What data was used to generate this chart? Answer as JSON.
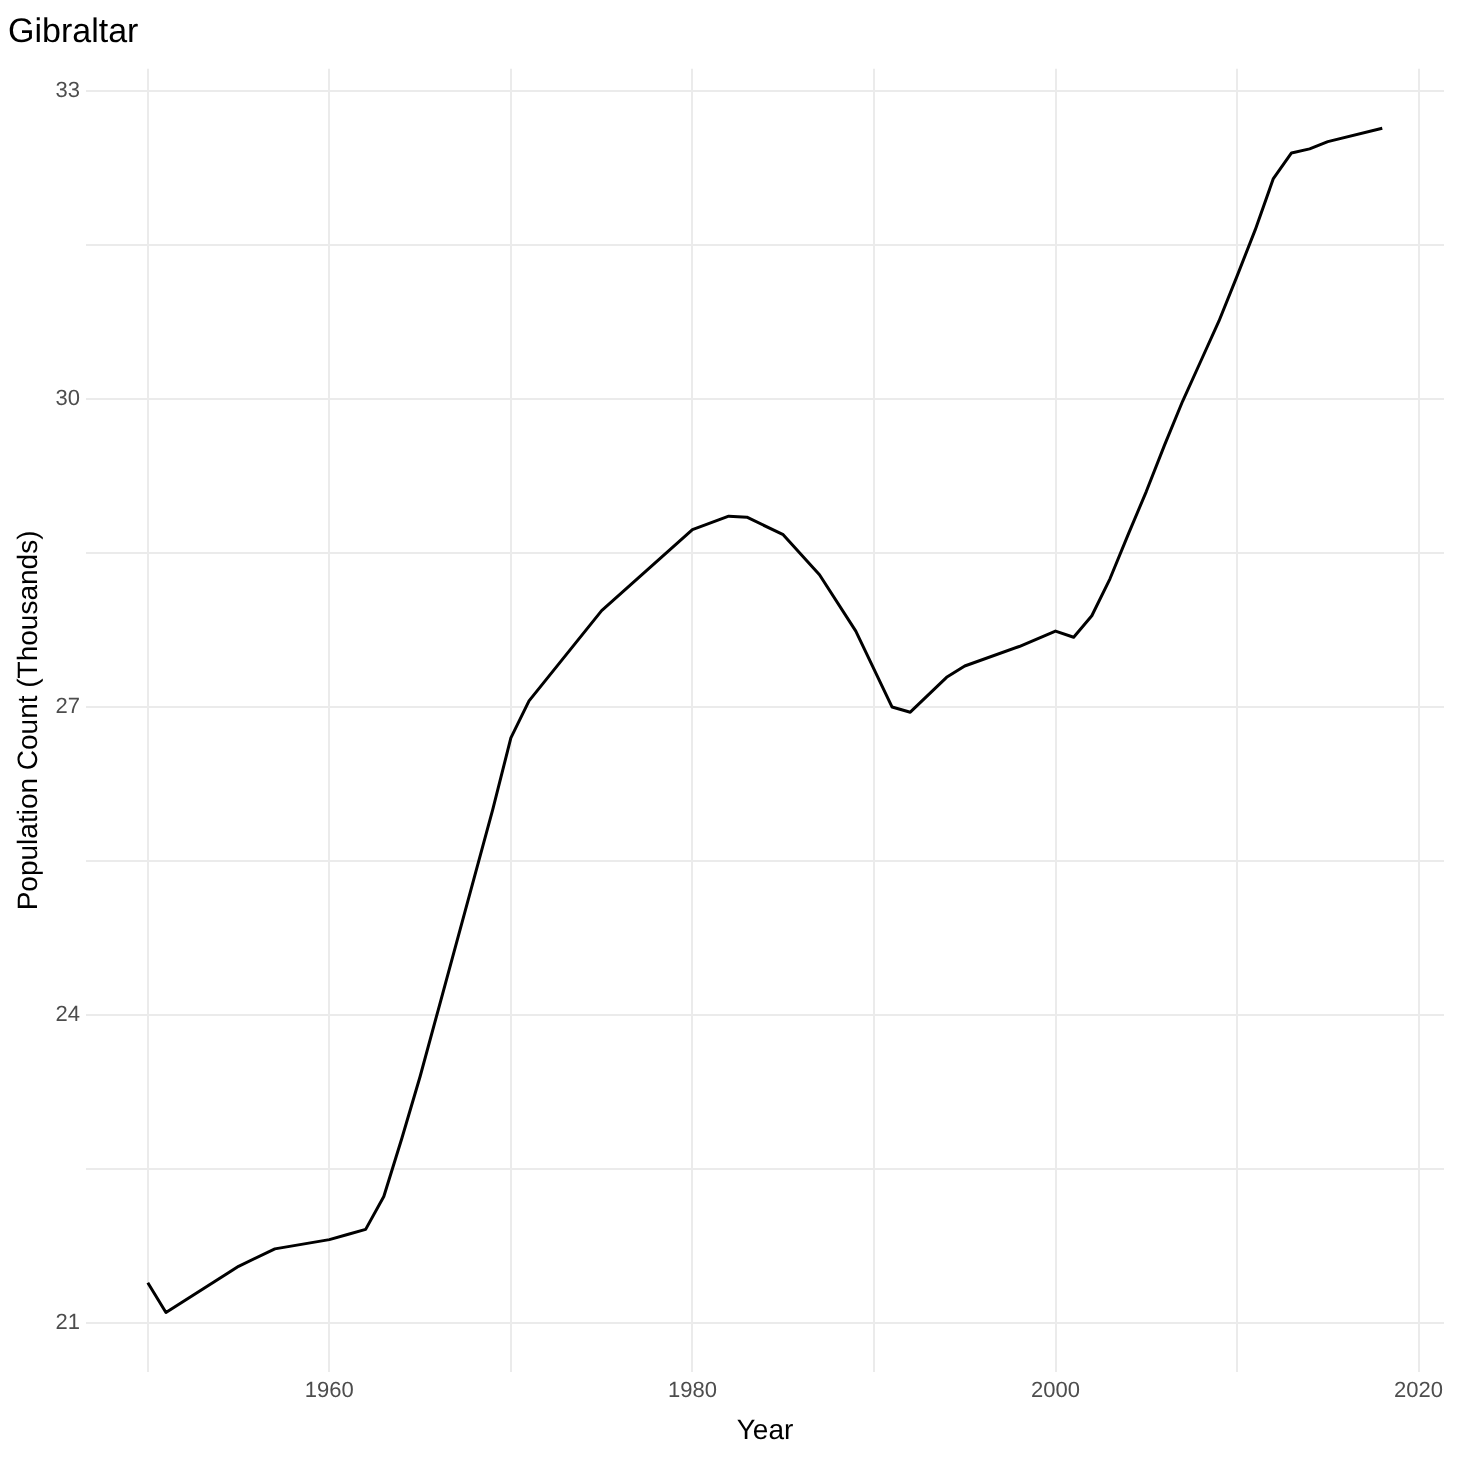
{
  "chart_data": {
    "type": "line",
    "title": "Gibraltar",
    "xlabel": "Year",
    "ylabel": "Population Count (Thousands)",
    "x": [
      1950,
      1951,
      1955,
      1957,
      1960,
      1961,
      1962,
      1963,
      1964,
      1965,
      1966,
      1967,
      1968,
      1969,
      1970,
      1971,
      1975,
      1980,
      1982,
      1983,
      1985,
      1987,
      1989,
      1991,
      1992,
      1994,
      1995,
      1998,
      2000,
      2001,
      2002,
      2003,
      2004,
      2005,
      2006,
      2007,
      2008,
      2009,
      2010,
      2011,
      2012,
      2013,
      2014,
      2015,
      2018
    ],
    "series": [
      {
        "color": "#000000",
        "values": [
          21.39,
          21.1,
          21.55,
          21.72,
          21.81,
          21.86,
          21.91,
          22.23,
          22.8,
          23.4,
          24.05,
          24.7,
          25.35,
          26.0,
          26.7,
          27.06,
          27.94,
          28.73,
          28.86,
          28.85,
          28.68,
          28.29,
          27.74,
          27.0,
          26.95,
          27.29,
          27.4,
          27.59,
          27.74,
          27.68,
          27.89,
          28.25,
          28.68,
          29.1,
          29.55,
          29.98,
          30.37,
          30.76,
          31.2,
          31.65,
          32.15,
          32.4,
          32.44,
          32.51,
          32.64
        ]
      }
    ],
    "xlim": [
      1946.6,
      2021.4
    ],
    "ylim": [
      20.52,
      33.22
    ],
    "xticks": [
      {
        "value": 1950,
        "label": null
      },
      1960,
      {
        "value": 1970,
        "label": null
      },
      1980,
      {
        "value": 1990,
        "label": null
      },
      2000,
      {
        "value": 2010,
        "label": null
      },
      2020
    ],
    "yticks": [
      21,
      {
        "value": 22.5,
        "label": null
      },
      24,
      {
        "value": 25.5,
        "label": null
      },
      27,
      {
        "value": 28.5,
        "label": null
      },
      30,
      {
        "value": 31.5,
        "label": null
      },
      33
    ],
    "grid": true,
    "legend": false,
    "marker": "none",
    "line_style": "solid"
  }
}
